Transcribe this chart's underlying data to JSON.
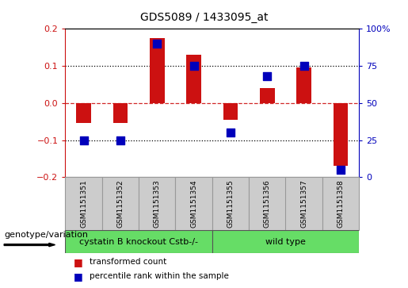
{
  "title": "GDS5089 / 1433095_at",
  "samples": [
    "GSM1151351",
    "GSM1151352",
    "GSM1151353",
    "GSM1151354",
    "GSM1151355",
    "GSM1151356",
    "GSM1151357",
    "GSM1151358"
  ],
  "transformed_count": [
    -0.055,
    -0.055,
    0.175,
    0.13,
    -0.045,
    0.04,
    0.095,
    -0.17
  ],
  "percentile_rank": [
    25,
    25,
    90,
    75,
    30,
    68,
    75,
    5
  ],
  "bar_color": "#CC1111",
  "dot_color": "#0000BB",
  "ylim_left": [
    -0.2,
    0.2
  ],
  "ylim_right": [
    0,
    100
  ],
  "yticks_left": [
    -0.2,
    -0.1,
    0.0,
    0.1,
    0.2
  ],
  "yticks_right": [
    0,
    25,
    50,
    75,
    100
  ],
  "ytick_labels_right": [
    "0",
    "25",
    "50",
    "75",
    "100%"
  ],
  "hlines_dotted": [
    0.1,
    -0.1
  ],
  "hline_dashed": 0.0,
  "group1_label": "cystatin B knockout Cstb-/-",
  "group2_label": "wild type",
  "group1_count": 4,
  "group2_count": 4,
  "group_color": "#66DD66",
  "row_label": "genotype/variation",
  "legend1": "transformed count",
  "legend2": "percentile rank within the sample",
  "bar_width": 0.4,
  "dot_size": 45,
  "background_color": "#FFFFFF",
  "plot_bg_color": "#FFFFFF",
  "sample_box_color": "#CCCCCC",
  "title_fontsize": 10,
  "tick_fontsize": 8,
  "sample_fontsize": 6.5,
  "group_fontsize": 8,
  "legend_fontsize": 7.5,
  "row_label_fontsize": 8
}
